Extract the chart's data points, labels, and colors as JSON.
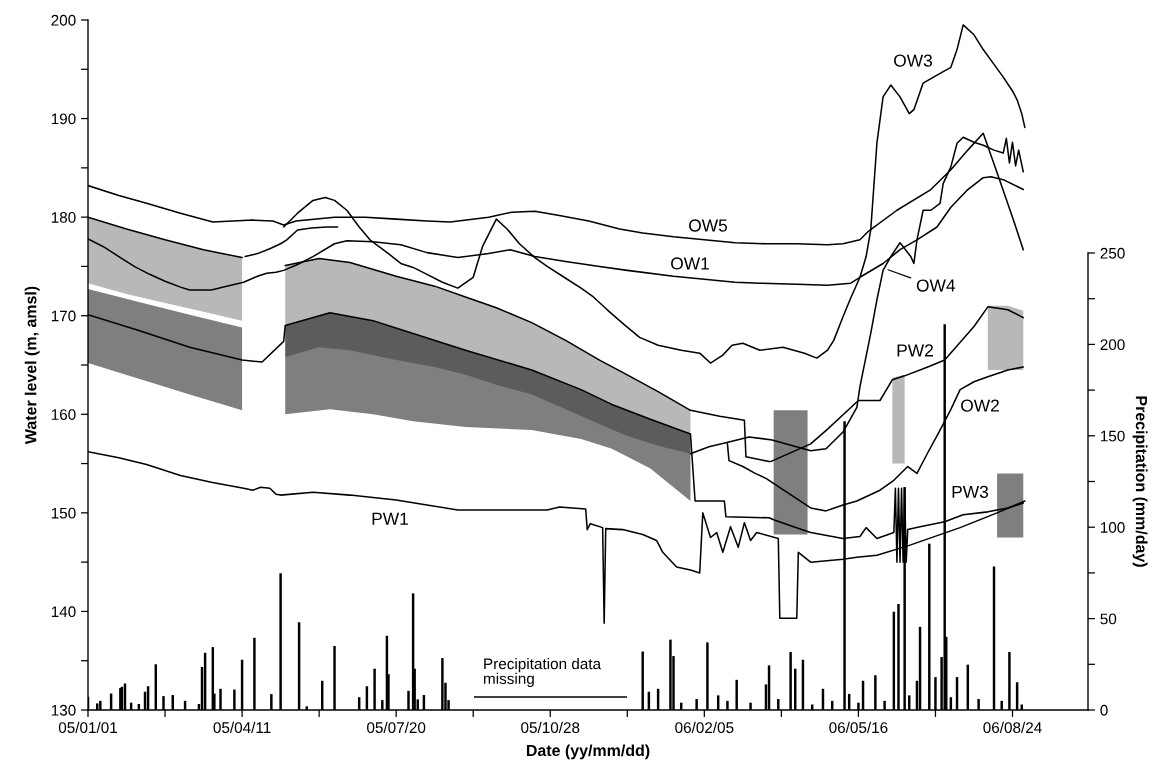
{
  "chart_data": {
    "type": "line",
    "xlabel": "Date (yy/mm/dd)",
    "ylabel": "Water level (m, amsl)",
    "y2label": "Precipitation (mm/day)",
    "annotations": [
      "Precipitation data\nmissing"
    ],
    "xlim": [
      "2005-01-01",
      "2006-10-12"
    ],
    "xticks": [
      {
        "value": "2005-01-01",
        "label": "05/01/01"
      },
      {
        "value": "2005-02-20",
        "label": null
      },
      {
        "value": "2005-04-11",
        "label": "05/04/11"
      },
      {
        "value": "2005-05-31",
        "label": null
      },
      {
        "value": "2005-07-20",
        "label": "05/07/20"
      },
      {
        "value": "2005-09-08",
        "label": null
      },
      {
        "value": "2005-10-28",
        "label": "05/10/28"
      },
      {
        "value": "2005-12-17",
        "label": null
      },
      {
        "value": "2006-02-05",
        "label": "06/02/05"
      },
      {
        "value": "2006-03-27",
        "label": null
      },
      {
        "value": "2006-05-16",
        "label": "06/05/16"
      },
      {
        "value": "2006-07-05",
        "label": null
      },
      {
        "value": "2006-08-24",
        "label": "06/08/24"
      }
    ],
    "ylim": [
      130,
      200
    ],
    "yticks": [
      130,
      {
        "value": 135,
        "label": null
      },
      140,
      {
        "value": 145,
        "label": null
      },
      150,
      {
        "value": 155,
        "label": null
      },
      160,
      {
        "value": 165,
        "label": null
      },
      170,
      {
        "value": 175,
        "label": null
      },
      180,
      {
        "value": 185,
        "label": null
      },
      190,
      {
        "value": 195,
        "label": null
      },
      200
    ],
    "y2lim": [
      0,
      250
    ],
    "y2ticks": [
      0,
      {
        "value": 25,
        "label": null
      },
      50,
      {
        "value": 75,
        "label": null
      },
      100,
      {
        "value": 125,
        "label": null
      },
      150,
      {
        "value": 175,
        "label": null
      },
      200,
      {
        "value": 225,
        "label": null
      },
      250
    ],
    "series": [
      {
        "name": "OW1",
        "color": "#000000",
        "x": [
          "2005-01-01",
          "2005-01-11",
          "2005-01-21",
          "2005-01-31",
          "2005-02-10",
          "2005-02-20",
          "2005-03-02",
          "2005-03-08",
          "2005-03-22",
          "2005-04-01",
          "2005-04-12",
          "2005-04-21",
          "2005-04-27",
          "2005-05-03",
          "2005-05-08",
          "2005-05-17",
          "2005-05-27",
          "2005-06-10",
          "2005-06-18",
          "2005-07-05",
          "2005-07-23",
          "2005-08-09",
          "2005-08-29",
          "2005-09-18",
          "2005-10-02",
          "2005-10-18",
          "2005-11-07",
          "2005-11-29",
          "2005-12-17",
          "2006-01-16",
          "2006-02-05",
          "2006-02-25",
          "2006-03-13",
          "2006-04-06",
          "2006-04-26",
          "2006-05-11",
          "2006-05-17",
          "2006-06-01",
          "2006-06-12",
          "2006-06-23",
          "2006-07-06",
          "2006-07-15",
          "2006-07-26",
          "2006-08-05",
          "2006-08-10",
          "2006-08-18",
          "2006-08-31"
        ],
        "values": [
          177.8,
          177.0,
          176.0,
          175.0,
          174.2,
          173.5,
          172.9,
          172.6,
          172.6,
          173.0,
          173.4,
          174.0,
          174.3,
          174.4,
          174.6,
          175.2,
          176.0,
          177.3,
          177.6,
          177.5,
          177.2,
          176.4,
          175.9,
          176.3,
          176.7,
          176.0,
          175.5,
          175.0,
          174.6,
          174.0,
          173.7,
          173.4,
          173.3,
          173.2,
          173.1,
          173.3,
          173.9,
          175.3,
          176.7,
          177.7,
          179.0,
          181.0,
          182.8,
          184.0,
          184.1,
          183.8,
          182.8
        ]
      },
      {
        "name": "OW2",
        "color": "#000000",
        "x": [
          "2005-04-13",
          "2005-04-21",
          "2005-04-29",
          "2005-05-06",
          "2005-05-10",
          "2005-05-17",
          "2005-05-26",
          "2005-06-05",
          "2005-06-12",
          "2005-10-28",
          "2006-02-20",
          "2006-02-21",
          "2006-03-02",
          "2006-03-10",
          "2006-03-17",
          "2006-04-15",
          "2006-04-25",
          "2006-05-06",
          "2006-05-15",
          "2006-05-30",
          "2006-06-08",
          "2006-06-17",
          "2006-06-23",
          "2006-06-30",
          "2006-07-08",
          "2006-07-15",
          "2006-07-21",
          "2006-07-30",
          "2006-08-08",
          "2006-08-21",
          "2006-08-31"
        ],
        "values": [
          176.0,
          176.3,
          176.8,
          177.3,
          177.7,
          178.7,
          178.9,
          179.0,
          179.0,
          null,
          157.0,
          155.3,
          154.7,
          154.0,
          153.5,
          150.5,
          150.2,
          150.8,
          151.2,
          152.3,
          153.3,
          154.7,
          154.0,
          156.1,
          158.4,
          160.5,
          162.5,
          163.3,
          163.8,
          164.5,
          164.8
        ]
      },
      {
        "name": "OW3",
        "color": "#000000",
        "x": [
          "2005-05-08",
          "2005-05-17",
          "2005-05-27",
          "2005-06-04",
          "2005-06-10",
          "2005-06-18",
          "2005-06-26",
          "2005-07-03",
          "2005-07-15",
          "2005-07-23",
          "2005-07-31",
          "2005-08-09",
          "2005-08-19",
          "2005-08-29",
          "2005-09-08",
          "2005-09-14",
          "2005-09-23",
          "2005-09-30",
          "2005-10-08",
          "2005-10-18",
          "2005-10-26",
          "2005-11-07",
          "2005-11-17",
          "2005-11-25",
          "2005-12-04",
          "2005-12-15",
          "2005-12-25",
          "2006-01-06",
          "2006-01-21",
          "2006-02-02",
          "2006-02-09",
          "2006-02-17",
          "2006-02-23",
          "2006-03-02",
          "2006-03-13",
          "2006-03-28",
          "2006-04-11",
          "2006-04-19",
          "2006-04-26",
          "2006-04-30",
          "2006-05-06",
          "2006-05-11",
          "2006-05-17",
          "2006-05-21",
          "2006-05-24",
          "2006-05-28",
          "2006-06-01",
          "2006-06-06",
          "2006-06-12",
          "2006-06-18",
          "2006-06-21",
          "2006-06-27",
          "2006-07-06",
          "2006-07-15",
          "2006-07-19",
          "2006-07-23",
          "2006-07-30",
          "2006-08-05",
          "2006-08-12",
          "2006-08-18",
          "2006-08-24",
          "2006-08-27",
          "2006-08-30",
          "2006-09-01"
        ],
        "values": [
          179.0,
          180.4,
          181.7,
          182.0,
          181.7,
          180.7,
          179.0,
          177.7,
          176.3,
          175.3,
          174.9,
          174.2,
          173.4,
          172.8,
          173.9,
          177.0,
          179.8,
          178.8,
          177.3,
          175.9,
          175.0,
          173.8,
          172.8,
          171.9,
          170.6,
          169.1,
          167.8,
          167.0,
          166.5,
          166.2,
          165.2,
          166.0,
          167.0,
          167.2,
          166.5,
          166.8,
          166.2,
          165.7,
          166.5,
          167.5,
          169.9,
          171.8,
          173.9,
          176.0,
          178.7,
          187.5,
          192.2,
          193.4,
          192.2,
          190.5,
          190.9,
          193.6,
          194.4,
          195.2,
          197.0,
          199.5,
          198.5,
          197.0,
          195.5,
          194.2,
          192.8,
          191.9,
          190.5,
          189.1
        ]
      },
      {
        "name": "OW4",
        "color": "#000000",
        "x": [
          "2006-01-27",
          "2006-02-08",
          "2006-02-21",
          "2006-03-06",
          "2006-03-21",
          "2006-04-15",
          "2006-04-25",
          "2006-05-06",
          "2006-05-15",
          "2006-05-17",
          "2006-05-24",
          "2006-05-28",
          "2006-06-01",
          "2006-06-06",
          "2006-06-12",
          "2006-06-19",
          "2006-06-21",
          "2006-06-23",
          "2006-06-27",
          "2006-07-02",
          "2006-07-08",
          "2006-07-10",
          "2006-07-15",
          "2006-07-19",
          "2006-07-23",
          "2006-07-30",
          "2006-08-05",
          "2006-08-12",
          "2006-08-18",
          "2006-08-20",
          "2006-08-22",
          "2006-08-24",
          "2006-08-26",
          "2006-08-28",
          "2006-08-31"
        ],
        "values": [
          156.0,
          156.7,
          157.2,
          157.7,
          157.4,
          156.3,
          156.5,
          158.2,
          160.7,
          162.8,
          168.2,
          171.6,
          174.6,
          176.0,
          177.4,
          176.0,
          175.3,
          177.7,
          180.7,
          180.7,
          181.4,
          183.4,
          185.1,
          187.5,
          188.1,
          187.6,
          187.3,
          186.8,
          186.5,
          188.0,
          185.5,
          187.6,
          185.2,
          186.8,
          184.6
        ]
      },
      {
        "name": "OW5",
        "color": "#000000",
        "x": [
          "2005-01-01",
          "2005-01-21",
          "2005-02-08",
          "2005-03-02",
          "2005-03-23",
          "2005-04-18",
          "2005-05-01",
          "2005-05-08",
          "2005-05-16",
          "2005-06-10",
          "2005-06-30",
          "2005-07-20",
          "2005-08-09",
          "2005-08-24",
          "2005-09-18",
          "2005-10-03",
          "2005-10-18",
          "2005-11-02",
          "2005-11-22",
          "2005-12-12",
          "2005-12-27",
          "2006-01-16",
          "2006-02-05",
          "2006-02-25",
          "2006-03-17",
          "2006-04-06",
          "2006-04-26",
          "2006-05-06",
          "2006-05-17",
          "2006-05-22",
          "2006-06-10",
          "2006-07-02",
          "2006-07-15",
          "2006-07-26",
          "2006-08-05",
          "2006-08-14",
          "2006-08-24",
          "2006-08-31"
        ],
        "values": [
          183.2,
          182.2,
          181.4,
          180.4,
          179.5,
          179.7,
          179.6,
          179.2,
          179.6,
          180.0,
          180.0,
          179.8,
          179.6,
          179.5,
          180.0,
          180.5,
          180.6,
          180.2,
          179.6,
          178.8,
          178.4,
          178.0,
          177.7,
          177.4,
          177.3,
          177.3,
          177.2,
          177.3,
          177.7,
          178.5,
          180.7,
          182.8,
          184.8,
          186.8,
          188.5,
          184.5,
          180.0,
          176.7
        ]
      },
      {
        "name": "PW1",
        "color": "#000000",
        "x": [
          "2005-01-01",
          "2005-01-21",
          "2005-02-08",
          "2005-03-02",
          "2005-03-22",
          "2005-04-12",
          "2005-04-18",
          "2005-04-23",
          "2005-04-29",
          "2005-05-03",
          "2005-05-06",
          "2005-05-27",
          "2005-06-20",
          "2005-07-20",
          "2005-08-09",
          "2005-08-29",
          "2005-09-28",
          "2005-10-26",
          "2005-11-03",
          "2005-11-20",
          "2005-11-21",
          "2005-11-23",
          "2005-12-01",
          "2005-12-02",
          "2005-12-03",
          "2005-12-14",
          "2005-12-27",
          "2006-01-05",
          "2006-01-09",
          "2006-01-18",
          "2006-01-27",
          "2006-02-02",
          "2006-02-04",
          "2006-02-09",
          "2006-02-13",
          "2006-02-17",
          "2006-02-22",
          "2006-02-27",
          "2006-03-03",
          "2006-03-07",
          "2006-03-11",
          "2006-03-25",
          "2006-03-26",
          "2006-04-06",
          "2006-04-07",
          "2006-04-15",
          "2006-05-06",
          "2006-05-15",
          "2006-05-28",
          "2006-06-18",
          "2006-07-21",
          "2006-08-14",
          "2006-09-01"
        ],
        "values": [
          156.2,
          155.6,
          154.9,
          153.8,
          153.1,
          152.5,
          152.3,
          152.6,
          152.5,
          151.9,
          151.8,
          152.1,
          151.8,
          151.3,
          150.8,
          150.3,
          150.3,
          150.3,
          150.6,
          150.4,
          148.3,
          148.9,
          148.5,
          138.8,
          148.4,
          148.3,
          147.8,
          147.2,
          146.0,
          144.5,
          144.2,
          143.9,
          150.0,
          147.5,
          148.0,
          146.0,
          148.6,
          146.5,
          149.0,
          147.2,
          148.0,
          147.4,
          139.3,
          139.3,
          146.0,
          145.0,
          145.3,
          145.5,
          145.7,
          146.7,
          148.5,
          150.0,
          151.2
        ]
      },
      {
        "name": "PW2",
        "color": "#000000",
        "x": [
          "2005-01-01",
          "2005-01-26",
          "2005-02-20",
          "2005-03-17",
          "2005-04-11",
          "2005-04-25",
          "2005-05-09",
          "2005-05-31",
          "2005-06-20",
          "2005-07-20",
          "2005-08-14",
          "2005-09-03",
          "2005-09-23",
          "2005-10-16",
          "2005-11-07",
          "2005-11-29",
          "2005-12-17",
          "2006-01-06",
          "2006-01-27",
          "2006-02-15",
          "2006-03-03",
          "2006-03-04",
          "2006-03-19",
          "2006-03-20",
          "2006-04-15",
          "2006-04-26",
          "2006-05-16",
          "2006-05-30",
          "2006-06-07",
          "2006-06-15",
          "2006-06-30",
          "2006-07-11",
          "2006-07-30",
          "2006-08-08",
          "2006-08-21",
          "2006-08-31"
        ],
        "values": [
          180.0,
          178.8,
          177.7,
          176.7,
          175.9,
          null,
          175.1,
          175.8,
          175.4,
          174.0,
          173.0,
          171.9,
          170.8,
          169.3,
          167.5,
          165.5,
          164.0,
          162.3,
          160.4,
          159.8,
          159.4,
          155.7,
          155.2,
          155.2,
          157.0,
          158.5,
          161.4,
          161.4,
          163.5,
          163.9,
          164.8,
          165.5,
          168.9,
          170.9,
          170.6,
          169.8
        ],
        "lower": [
          173.3,
          172.2,
          171.3,
          170.4,
          169.5,
          null,
          165.8,
          166.8,
          166.5,
          165.5,
          164.8,
          164.0,
          163.0,
          162.0,
          160.5,
          159.0,
          157.8,
          156.8,
          156.0,
          null,
          null,
          null,
          null,
          null,
          null,
          null,
          null,
          null,
          155.0,
          155.0,
          null,
          null,
          null,
          164.5,
          164.5,
          164.5
        ],
        "upper": [
          180.0,
          178.8,
          177.7,
          176.7,
          175.9,
          null,
          175.1,
          175.8,
          175.4,
          174.0,
          173.0,
          171.9,
          170.8,
          169.3,
          167.5,
          165.5,
          164.0,
          162.3,
          160.4,
          null,
          null,
          null,
          null,
          null,
          null,
          null,
          null,
          null,
          163.7,
          164.0,
          null,
          null,
          null,
          171.0,
          171.0,
          170.5
        ]
      },
      {
        "name": "PW3",
        "color": "#000000",
        "x": [
          "2005-01-01",
          "2005-02-03",
          "2005-03-08",
          "2005-04-11",
          "2005-04-24",
          "2005-05-08",
          "2005-05-09",
          "2005-06-07",
          "2005-07-05",
          "2005-07-31",
          "2005-09-03",
          "2005-10-16",
          "2005-11-17",
          "2005-12-07",
          "2006-01-01",
          "2006-01-27",
          "2006-01-30",
          "2006-02-18",
          "2006-02-19",
          "2006-03-19",
          "2006-03-22",
          "2006-04-02",
          "2006-04-13",
          "2006-04-15",
          "2006-05-06",
          "2006-05-17",
          "2006-05-21",
          "2006-05-28",
          "2006-06-08",
          "2006-06-09",
          "2006-06-10",
          "2006-06-11",
          "2006-06-12",
          "2006-06-13",
          "2006-06-14",
          "2006-06-15",
          "2006-06-16",
          "2006-06-17",
          "2006-06-25",
          "2006-07-11",
          "2006-07-23",
          "2006-08-08",
          "2006-08-14",
          "2006-08-21",
          "2006-08-31"
        ],
        "values": [
          170.1,
          168.5,
          166.8,
          165.5,
          165.3,
          167.4,
          169.0,
          170.3,
          169.5,
          168.2,
          166.5,
          164.5,
          162.5,
          161.0,
          159.5,
          158.0,
          151.2,
          151.2,
          149.6,
          149.5,
          149.3,
          148.7,
          148.1,
          148.0,
          147.4,
          147.6,
          148.5,
          147.4,
          148.0,
          152.5,
          145.0,
          152.5,
          145.0,
          152.5,
          145.0,
          152.5,
          145.0,
          148.3,
          148.6,
          149.1,
          149.8,
          150.1,
          150.3,
          150.5,
          151.0
        ],
        "lower": [
          165.2,
          163.6,
          162.0,
          160.4,
          null,
          null,
          160.0,
          160.5,
          160.0,
          159.3,
          158.7,
          158.4,
          157.5,
          156.5,
          154.5,
          151.2,
          null,
          null,
          null,
          null,
          147.8,
          147.8,
          147.8,
          null,
          null,
          null,
          null,
          null,
          null,
          null,
          null,
          null,
          null,
          null,
          null,
          null,
          null,
          null,
          null,
          null,
          null,
          null,
          147.5,
          147.5,
          147.5
        ],
        "upper": [
          172.7,
          171.4,
          170.1,
          168.8,
          null,
          null,
          169.0,
          170.3,
          169.5,
          168.2,
          166.5,
          164.5,
          162.5,
          161.0,
          159.5,
          158.0,
          null,
          null,
          null,
          null,
          160.4,
          160.4,
          160.4,
          null,
          null,
          null,
          null,
          null,
          null,
          null,
          null,
          null,
          null,
          null,
          null,
          null,
          null,
          null,
          null,
          null,
          null,
          null,
          154.0,
          154.0,
          154.0
        ]
      },
      {
        "type": "bar",
        "axis": "y2",
        "color": "#000000",
        "x": [
          "2005-01-01",
          "2005-01-07",
          "2005-01-09",
          "2005-01-16",
          "2005-01-22",
          "2005-01-23",
          "2005-01-25",
          "2005-01-29",
          "2005-02-03",
          "2005-02-07",
          "2005-02-09",
          "2005-02-14",
          "2005-02-19",
          "2005-02-25",
          "2005-03-05",
          "2005-03-14",
          "2005-03-16",
          "2005-03-18",
          "2005-03-23",
          "2005-03-24",
          "2005-03-28",
          "2005-04-06",
          "2005-04-11",
          "2005-04-19",
          "2005-04-30",
          "2005-05-06",
          "2005-05-18",
          "2005-05-23",
          "2005-06-02",
          "2005-06-10",
          "2005-06-26",
          "2005-07-01",
          "2005-07-06",
          "2005-07-11",
          "2005-07-14",
          "2005-07-15",
          "2005-07-28",
          "2005-07-31",
          "2005-08-01",
          "2005-08-03",
          "2005-08-07",
          "2005-08-19",
          "2005-08-21",
          "2005-08-23",
          "2005-12-27",
          "2005-12-31",
          "2006-01-06",
          "2006-01-14",
          "2006-01-16",
          "2006-01-21",
          "2006-01-31",
          "2006-02-07",
          "2006-02-14",
          "2006-02-20",
          "2006-02-26",
          "2006-03-07",
          "2006-03-17",
          "2006-03-19",
          "2006-03-25",
          "2006-04-02",
          "2006-04-05",
          "2006-04-10",
          "2006-04-16",
          "2006-04-23",
          "2006-04-29",
          "2006-05-07",
          "2006-05-10",
          "2006-05-16",
          "2006-05-19",
          "2006-05-27",
          "2006-06-02",
          "2006-06-08",
          "2006-06-11",
          "2006-06-15",
          "2006-06-18",
          "2006-06-23",
          "2006-06-25",
          "2006-07-01",
          "2006-07-05",
          "2006-07-09",
          "2006-07-11",
          "2006-07-12",
          "2006-07-15",
          "2006-07-19",
          "2006-07-26",
          "2006-08-02",
          "2006-08-12",
          "2006-08-17",
          "2006-08-22",
          "2006-08-27",
          "2006-08-30"
        ],
        "values": [
          7.2,
          3.6,
          5,
          9,
          12,
          12.7,
          14.5,
          4,
          3.3,
          10,
          13,
          25,
          7.6,
          8.2,
          5,
          3.3,
          23.5,
          31.3,
          34.4,
          9,
          11.6,
          11.2,
          27.5,
          39.5,
          8.7,
          74.8,
          48,
          2,
          16,
          35,
          7,
          13,
          22.6,
          5.4,
          40.6,
          19.6,
          10.5,
          63.8,
          22.6,
          5.8,
          8.2,
          28.4,
          14.9,
          5.4,
          32,
          10,
          11.6,
          38.5,
          29.5,
          4,
          6,
          37,
          8,
          5,
          16.5,
          4,
          14,
          24.4,
          6,
          31.7,
          22.6,
          27.5,
          3,
          11.6,
          5,
          158,
          8.8,
          4,
          16,
          19,
          5,
          53.8,
          58,
          122,
          8,
          16,
          45.5,
          91,
          18,
          29,
          211,
          40,
          7,
          18,
          24.8,
          6,
          78.5,
          5,
          31.7,
          15.2,
          3
        ]
      }
    ]
  }
}
